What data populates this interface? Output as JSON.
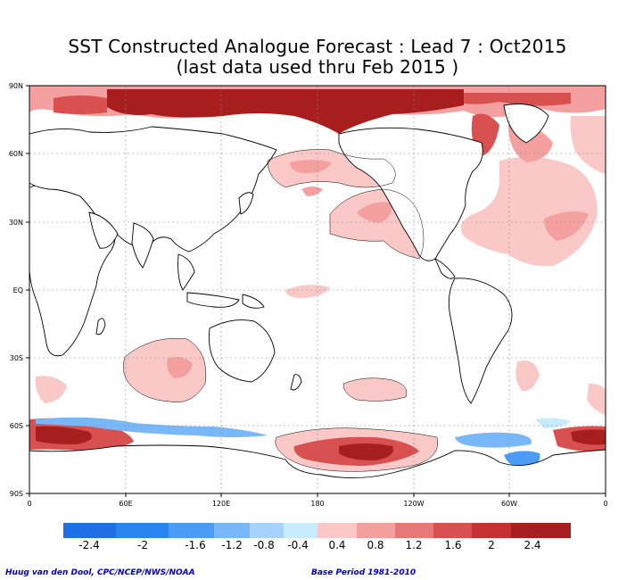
{
  "title": {
    "line1": "SST Constructed Analogue Forecast : Lead 7 : Oct2015",
    "line2": "(last data used thru Feb 2015 )"
  },
  "axes": {
    "lat_labels": [
      "90N",
      "60N",
      "30N",
      "EQ",
      "30S",
      "60S",
      "90S"
    ],
    "lon_labels": [
      "0",
      "60E",
      "120E",
      "180",
      "120W",
      "60W",
      "0"
    ]
  },
  "colorbar": {
    "negative_colors": [
      "#1e6ee6",
      "#2a84ef",
      "#4a9cf5",
      "#78b8f8",
      "#a6d2fb",
      "#c8ecfd"
    ],
    "positive_colors": [
      "#fbc8c8",
      "#f4a0a0",
      "#e67878",
      "#d85050",
      "#c53030",
      "#a81e1e"
    ],
    "labels": [
      "-2.4",
      "-2",
      "-1.6",
      "-1.2",
      "-0.8",
      "-0.4",
      "0.4",
      "0.8",
      "1.2",
      "1.6",
      "2",
      "2.4"
    ]
  },
  "credits": {
    "left": "Huug van den Dool, CPC/NCEP/NWS/NOAA",
    "right": "Base Period 1981-2010"
  }
}
